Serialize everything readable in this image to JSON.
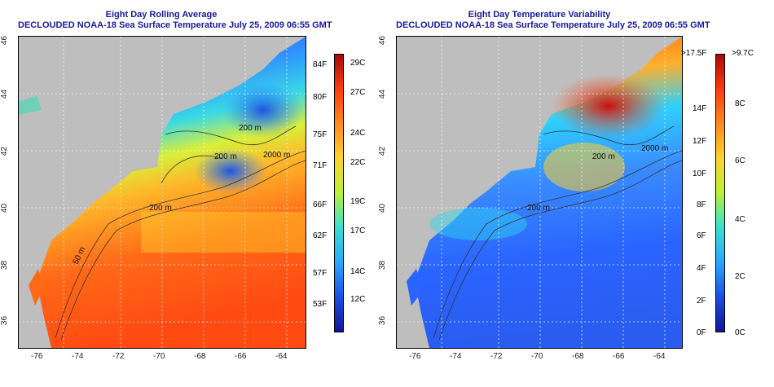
{
  "left_panel": {
    "title": "Eight Day Rolling Average",
    "subtitle": "DECLOUDED NOAA-18 Sea Surface Temperature July 25, 2009 06:55 GMT",
    "contour_labels": [
      "200 m",
      "200 m",
      "200 m",
      "2000 m",
      "50 m"
    ],
    "colorbar_f": [
      "84F",
      "80F",
      "75F",
      "71F",
      "66F",
      "62F",
      "57F",
      "53F"
    ],
    "colorbar_c": [
      "29C",
      "27C",
      "24C",
      "22C",
      "19C",
      "17C",
      "14C",
      "12C"
    ]
  },
  "right_panel": {
    "title": "Eight Day Temperature Variability",
    "subtitle": "DECLOUDED NOAA-18 Sea Surface Temperature July 25, 2009 06:55 GMT",
    "contour_labels": [
      "200 m",
      "200 m",
      "2000 m"
    ],
    "colorbar_f": [
      ">17.5F",
      "14F",
      "12F",
      "10F",
      "8F",
      "6F",
      "4F",
      "2F",
      "0F"
    ],
    "colorbar_c": [
      ">9.7C",
      "8C",
      "6C",
      "4C",
      "2C",
      "0C"
    ]
  },
  "axes": {
    "x_ticks": [
      "-76",
      "-74",
      "-72",
      "-70",
      "-68",
      "-66",
      "-64"
    ],
    "y_ticks": [
      "46",
      "44",
      "42",
      "40",
      "38",
      "36"
    ]
  },
  "colors": {
    "title": "#1a1a9e",
    "land": "#bebebe",
    "warm": "#ff5a14",
    "cool": "#2a6cff"
  }
}
